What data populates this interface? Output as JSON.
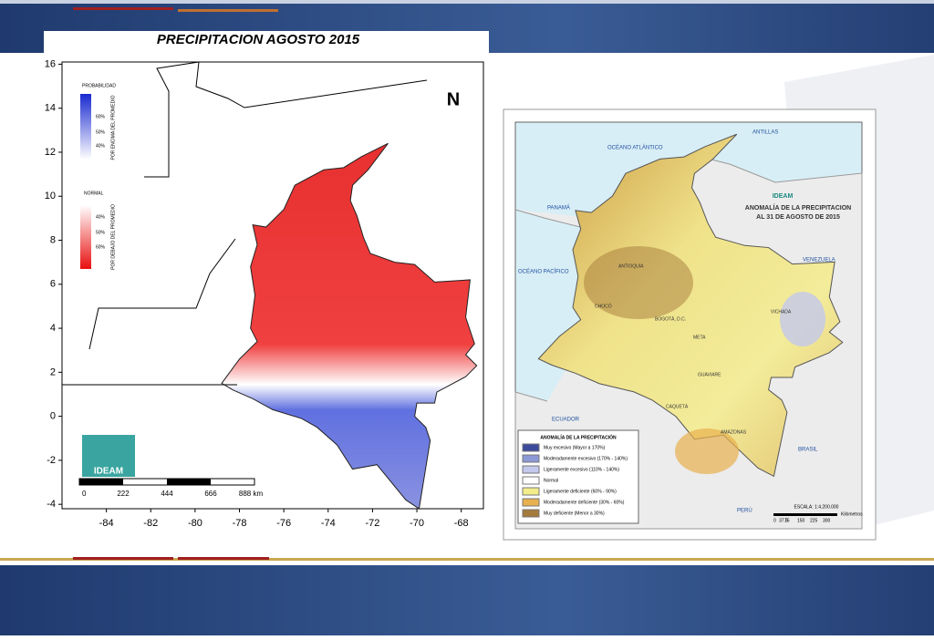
{
  "header": {
    "title": "PRECIPITACION AGOSTO 2015"
  },
  "left_map": {
    "xlim": [
      -86,
      -67
    ],
    "ylim": [
      16.1,
      -4.2
    ],
    "xticks": [
      -84,
      -82,
      -80,
      -78,
      -76,
      -74,
      -72,
      -70,
      -68
    ],
    "yticks": [
      16,
      14,
      12,
      10,
      8,
      6,
      4,
      2,
      0,
      -2,
      -4
    ],
    "legend": {
      "title": "PROBABILIDAD",
      "above_label": "POR ENCIMA DEL PROMEDIO",
      "above_levels": [
        "60%",
        "50%",
        "40%"
      ],
      "normal": "NORMAL",
      "below_label": "POR DEBAJO DEL PROMEDIO",
      "below_levels": [
        "40%",
        "50%",
        "60%"
      ]
    },
    "logo": "IDEAM",
    "scale_labels": [
      "0",
      "222",
      "444",
      "666",
      "888 km"
    ]
  },
  "right_map": {
    "title": [
      "ANOMALÍA DE LA PRECIPITACION",
      "AL 31 DE AGOSTO DE 2015"
    ],
    "logo": "IDEAM",
    "places": [
      "OCÉANO ATLÁNTICO",
      "OCÉANO PACÍFICO",
      "PANAMÁ",
      "VENEZUELA",
      "ECUADOR",
      "BRASIL",
      "PERÚ",
      "ANTILLAS",
      "ANTIOQUIA",
      "CHOCÓ",
      "META",
      "GUAVIARE",
      "AMAZONAS",
      "VICHADA",
      "CAQUETÁ",
      "BOGOTÁ, D.C."
    ],
    "legend": {
      "title": "ANOMALÍA DE LA PRECIPITACIÓN",
      "items": [
        {
          "label": "Muy excesivo (Mayor a 170%)",
          "color": "#3d4a9c"
        },
        {
          "label": "Moderadamente excesivo (170% - 140%)",
          "color": "#8d98d6"
        },
        {
          "label": "Ligeramente excesivo (110% - 140%)",
          "color": "#c3c8ec"
        },
        {
          "label": "Normal",
          "color": "#ffffff"
        },
        {
          "label": "Ligeramente deficiente (60% - 90%)",
          "color": "#f3ec8a"
        },
        {
          "label": "Moderadamente deficiente (30% - 60%)",
          "color": "#e8b04e"
        },
        {
          "label": "Muy deficiente (Menor a 30%)",
          "color": "#a57a3a"
        }
      ]
    },
    "scale": "ESCALA: 1:4.200.000",
    "scale_labels": [
      "0",
      "37.5",
      "75",
      "150",
      "225",
      "300"
    ],
    "scale_unit": "Kilómetros"
  }
}
